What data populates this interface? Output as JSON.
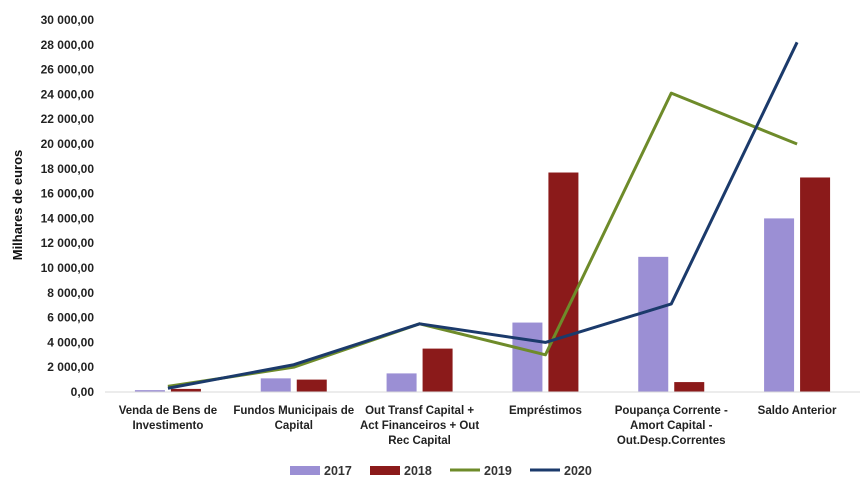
{
  "chart_data": {
    "type": "bar",
    "title": "",
    "xlabel": "",
    "ylabel": "Milhares de euros",
    "ylim": [
      0,
      30000
    ],
    "yticks": [
      0,
      2000,
      4000,
      6000,
      8000,
      10000,
      12000,
      14000,
      16000,
      18000,
      20000,
      22000,
      24000,
      26000,
      28000,
      30000
    ],
    "ytick_labels": [
      "0,00",
      "2 000,00",
      "4 000,00",
      "6 000,00",
      "8 000,00",
      "10 000,00",
      "12 000,00",
      "14 000,00",
      "16 000,00",
      "18 000,00",
      "20 000,00",
      "22 000,00",
      "24 000,00",
      "26 000,00",
      "28 000,00",
      "30 000,00"
    ],
    "grid": false,
    "legend_position": "bottom",
    "categories": [
      [
        "Venda de  Bens de",
        "Investimento"
      ],
      [
        "Fundos Municipais de",
        "Capital"
      ],
      [
        "Out Transf Capital +",
        "Act Financeiros + Out",
        "Rec Capital"
      ],
      [
        "Empréstimos"
      ],
      [
        "Poupança Corrente -",
        "Amort Capital -",
        "Out.Desp.Correntes"
      ],
      [
        "Saldo Anterior"
      ]
    ],
    "series": [
      {
        "name": "2017",
        "kind": "bar",
        "color": "#9B8FD4",
        "values": [
          150,
          1100,
          1500,
          5600,
          10900,
          14000
        ]
      },
      {
        "name": "2018",
        "kind": "bar",
        "color": "#8B1A1A",
        "values": [
          250,
          1000,
          3500,
          17700,
          800,
          17300
        ]
      },
      {
        "name": "2019",
        "kind": "line",
        "color": "#6E8B2A",
        "values": [
          450,
          2000,
          5500,
          3000,
          24100,
          20000
        ]
      },
      {
        "name": "2020",
        "kind": "line",
        "color": "#1B3A6B",
        "values": [
          300,
          2200,
          5500,
          4000,
          7100,
          28200
        ]
      }
    ]
  }
}
